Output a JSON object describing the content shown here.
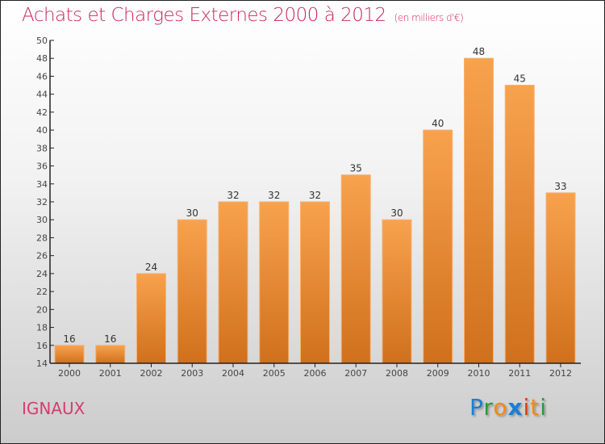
{
  "chart_data": {
    "type": "bar",
    "title": "Achats et Charges Externes 2000 à 2012",
    "subtitle": "(en milliers d'€)",
    "categories": [
      "2000",
      "2001",
      "2002",
      "2003",
      "2004",
      "2005",
      "2006",
      "2007",
      "2008",
      "2009",
      "2010",
      "2011",
      "2012"
    ],
    "values": [
      16,
      16,
      24,
      30,
      32,
      32,
      32,
      35,
      30,
      40,
      48,
      45,
      33
    ],
    "ylim": [
      14,
      50
    ],
    "yticks": [
      14,
      16,
      18,
      20,
      22,
      24,
      26,
      28,
      30,
      32,
      34,
      36,
      38,
      40,
      42,
      44,
      46,
      48,
      50
    ],
    "xlabel": "",
    "ylabel": "",
    "grid": false,
    "bar_color_top": "#f8a24e",
    "bar_color_bottom": "#d0701c"
  },
  "commune": "IGNAUX",
  "logo": {
    "text": "Proxiti",
    "colors": [
      "#1a7fd4",
      "#2a9a3a",
      "#f28a10",
      "#1a7fd4",
      "#e03a10",
      "#f28a10",
      "#2a9a3a"
    ]
  }
}
